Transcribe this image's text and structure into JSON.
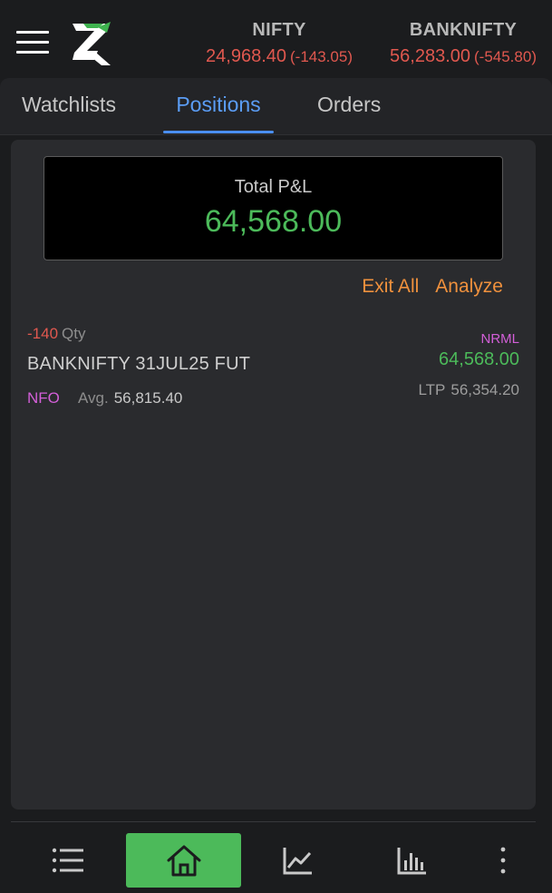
{
  "header": {
    "menu_icon": "hamburger-icon",
    "logo_icon": "z-logo",
    "indices": [
      {
        "name": "NIFTY",
        "price": "24,968.40",
        "change": "(-143.05)"
      },
      {
        "name": "BANKNIFTY",
        "price": "56,283.00",
        "change": "(-545.80)"
      }
    ]
  },
  "tabs": [
    {
      "label": "Watchlists"
    },
    {
      "label": "Positions",
      "active": true
    },
    {
      "label": "Orders"
    }
  ],
  "summary": {
    "total_pnl_label": "Total P&L",
    "total_pnl_value": "64,568.00"
  },
  "actions": {
    "exit_all": "Exit All",
    "analyze": "Analyze"
  },
  "positions": [
    {
      "qty": "-140",
      "qty_label": "Qty",
      "symbol": "BANKNIFTY 31JUL25 FUT",
      "exchange": "NFO",
      "avg_label": "Avg.",
      "avg_price": "56,815.40",
      "product": "NRML",
      "pnl": "64,568.00",
      "ltp_label": "LTP",
      "ltp": "56,354.20"
    }
  ],
  "bottom_nav": [
    {
      "icon": "list-icon"
    },
    {
      "icon": "home-icon",
      "active": true
    },
    {
      "icon": "line-chart-icon"
    },
    {
      "icon": "bar-chart-icon"
    },
    {
      "icon": "more-vertical-icon"
    }
  ],
  "colors": {
    "background": "#1b1c1e",
    "panel": "#2a2b2e",
    "profit": "#4cba5a",
    "loss": "#e0584f",
    "accent_tab": "#5b9df5",
    "action": "#f0913d",
    "exchange": "#d35fd8"
  }
}
